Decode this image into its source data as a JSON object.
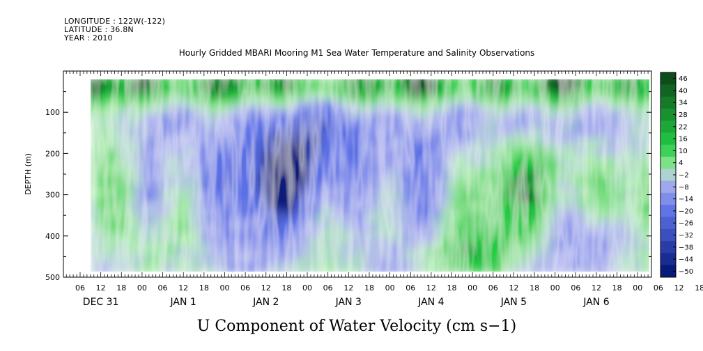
{
  "header": {
    "longitude": "LONGITUDE : 122W(-122)",
    "latitude": "LATITUDE : 36.8N",
    "year": "YEAR : 2010"
  },
  "chart_data": {
    "type": "heatmap",
    "title": "Hourly Gridded MBARI Mooring M1 Sea Water Temperature and Salinity Observations",
    "xlabel": "U Component of Water Velocity (cm s−1)",
    "ylabel": "DEPTH (m)",
    "y_ticks": [
      100,
      200,
      300,
      400,
      500
    ],
    "ylim": [
      500,
      0
    ],
    "data_depth_range": [
      10,
      485
    ],
    "x_hour_ticks": [
      "06",
      "12",
      "18",
      "00",
      "06",
      "12",
      "18",
      "00",
      "06",
      "12",
      "18",
      "00",
      "06",
      "12",
      "18",
      "00",
      "06",
      "12",
      "18",
      "00",
      "06",
      "12",
      "18",
      "00",
      "06",
      "12",
      "18",
      "00",
      "06",
      "12",
      "18",
      "00"
    ],
    "x_day_labels": [
      "DEC 31",
      "JAN  1",
      "JAN  2",
      "JAN  3",
      "JAN  4",
      "JAN  5",
      "JAN  6"
    ],
    "colorbar": {
      "levels": [
        "46",
        "40",
        "34",
        "28",
        "22",
        "16",
        "10",
        "4",
        "−2",
        "−8",
        "−14",
        "−20",
        "−26",
        "−32",
        "−38",
        "−44",
        "−50"
      ],
      "range": [
        -50,
        50
      ]
    },
    "colors": {
      "strong_positive": "#0d4d1a",
      "positive": "#22cc44",
      "weak_positive": "#a8ecaa",
      "weak_negative": "#b4b8ef",
      "negative": "#5a6fe6",
      "strong_negative": "#081a7a"
    }
  }
}
